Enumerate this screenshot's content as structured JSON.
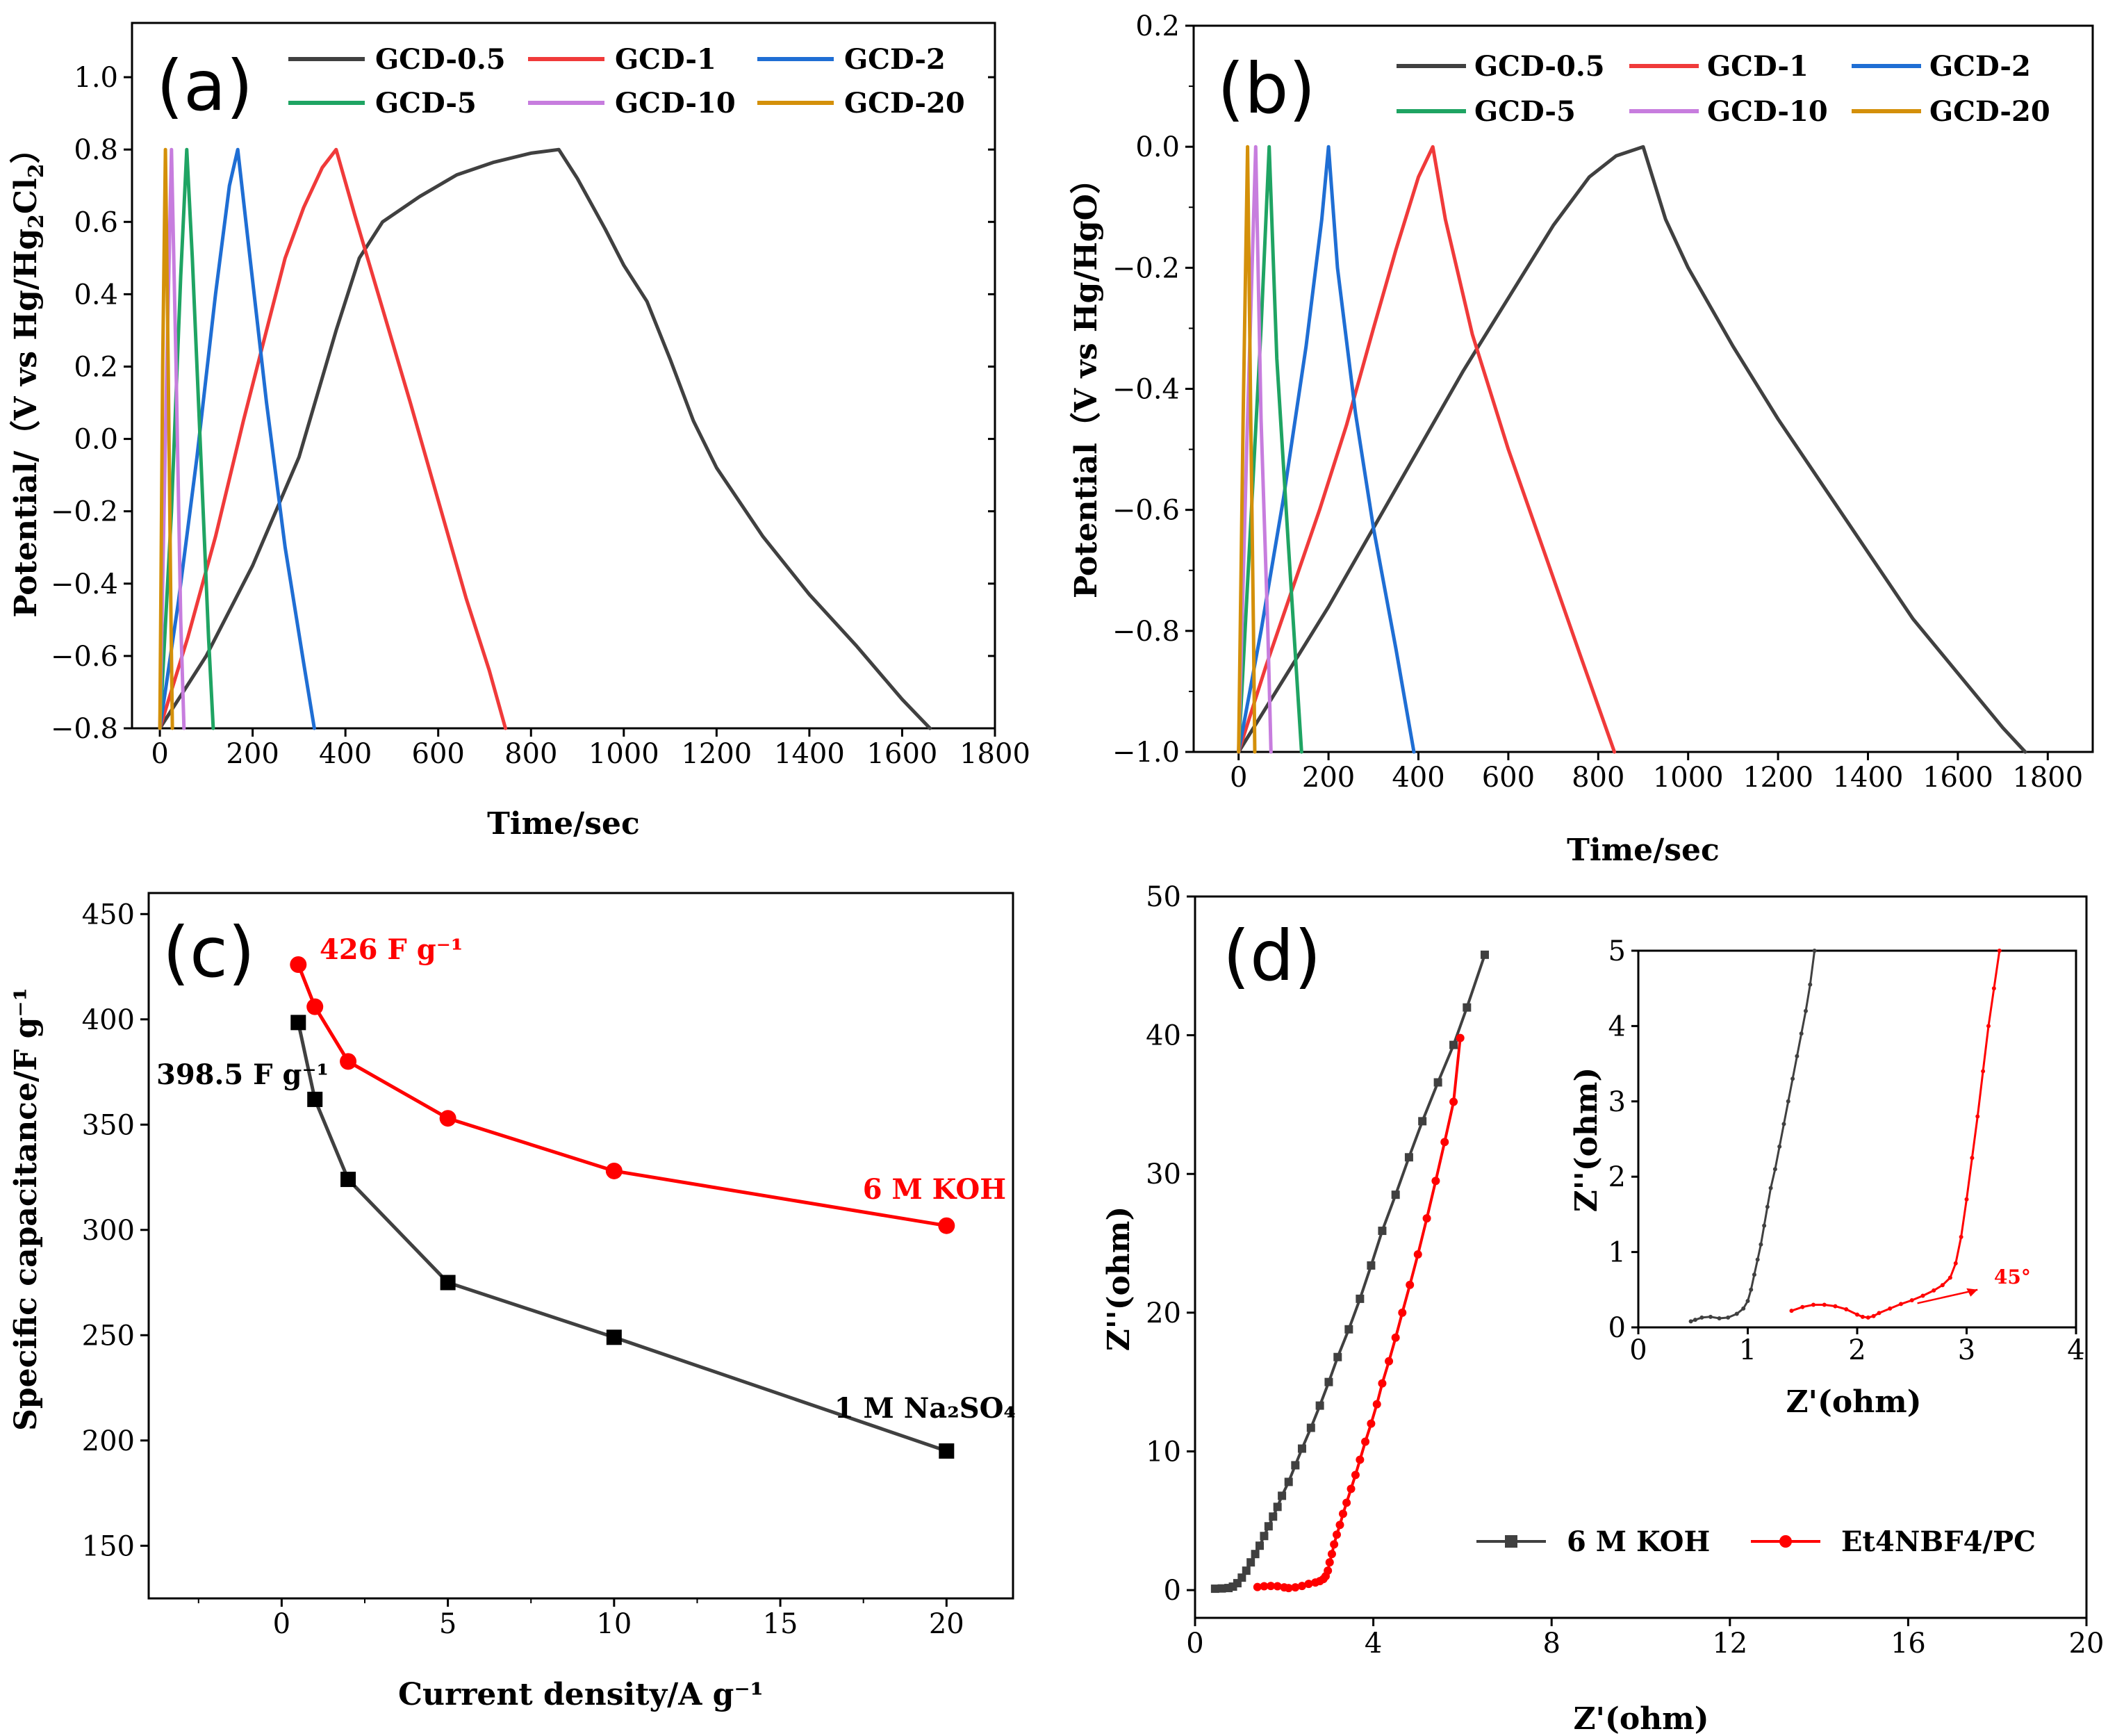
{
  "chart_data": [
    {
      "panel": "(a)",
      "type": "line",
      "xlabel": "Time/sec",
      "ylabel": "Potential/（V vs Hg/Hg2Cl2）",
      "ylabel_parts": {
        "pre": "Potential/（V vs Hg/Hg",
        "sub1": "2",
        "mid": "Cl",
        "sub2": "2",
        "post": "）"
      },
      "xlim": [
        -60,
        1800
      ],
      "ylim": [
        -0.8,
        1.15
      ],
      "xticks": [
        0,
        200,
        400,
        600,
        800,
        1000,
        1200,
        1400,
        1600,
        1800
      ],
      "yticks": [
        -0.8,
        -0.6,
        -0.4,
        -0.2,
        0.0,
        0.2,
        0.4,
        0.6,
        0.8,
        1.0
      ],
      "ytick_labels": [
        "−0.8",
        "−0.6",
        "−0.4",
        "−0.2",
        "0.0",
        "0.2",
        "0.4",
        "0.6",
        "0.8",
        "1.0"
      ],
      "series": [
        {
          "name": "GCD-0.5",
          "color": "#404040",
          "points": [
            [
              0,
              -0.8
            ],
            [
              100,
              -0.6
            ],
            [
              200,
              -0.35
            ],
            [
              300,
              -0.05
            ],
            [
              380,
              0.3
            ],
            [
              430,
              0.5
            ],
            [
              480,
              0.6
            ],
            [
              560,
              0.67
            ],
            [
              640,
              0.73
            ],
            [
              720,
              0.765
            ],
            [
              800,
              0.79
            ],
            [
              860,
              0.8
            ],
            [
              900,
              0.72
            ],
            [
              960,
              0.58
            ],
            [
              1000,
              0.48
            ],
            [
              1050,
              0.38
            ],
            [
              1100,
              0.22
            ],
            [
              1150,
              0.05
            ],
            [
              1200,
              -0.08
            ],
            [
              1300,
              -0.27
            ],
            [
              1400,
              -0.43
            ],
            [
              1500,
              -0.57
            ],
            [
              1600,
              -0.72
            ],
            [
              1660,
              -0.8
            ]
          ]
        },
        {
          "name": "GCD-1",
          "color": "#f03a3a",
          "points": [
            [
              0,
              -0.8
            ],
            [
              60,
              -0.55
            ],
            [
              120,
              -0.27
            ],
            [
              180,
              0.05
            ],
            [
              230,
              0.3
            ],
            [
              270,
              0.5
            ],
            [
              310,
              0.64
            ],
            [
              350,
              0.75
            ],
            [
              380,
              0.8
            ],
            [
              420,
              0.62
            ],
            [
              480,
              0.36
            ],
            [
              540,
              0.1
            ],
            [
              600,
              -0.17
            ],
            [
              660,
              -0.44
            ],
            [
              710,
              -0.64
            ],
            [
              745,
              -0.8
            ]
          ]
        },
        {
          "name": "GCD-2",
          "color": "#1f6ed4",
          "points": [
            [
              0,
              -0.8
            ],
            [
              40,
              -0.45
            ],
            [
              80,
              -0.05
            ],
            [
              120,
              0.4
            ],
            [
              150,
              0.7
            ],
            [
              168,
              0.8
            ],
            [
              190,
              0.55
            ],
            [
              230,
              0.1
            ],
            [
              270,
              -0.3
            ],
            [
              310,
              -0.62
            ],
            [
              333,
              -0.8
            ]
          ]
        },
        {
          "name": "GCD-5",
          "color": "#1fa463",
          "points": [
            [
              0,
              -0.8
            ],
            [
              25,
              -0.2
            ],
            [
              45,
              0.45
            ],
            [
              58,
              0.8
            ],
            [
              70,
              0.5
            ],
            [
              90,
              -0.1
            ],
            [
              105,
              -0.55
            ],
            [
              115,
              -0.8
            ]
          ]
        },
        {
          "name": "GCD-10",
          "color": "#c77dde",
          "points": [
            [
              0,
              -0.8
            ],
            [
              15,
              0.2
            ],
            [
              25,
              0.8
            ],
            [
              35,
              0.2
            ],
            [
              45,
              -0.5
            ],
            [
              52,
              -0.8
            ]
          ]
        },
        {
          "name": "GCD-20",
          "color": "#d4900a",
          "points": [
            [
              0,
              -0.8
            ],
            [
              6,
              0.2
            ],
            [
              12,
              0.8
            ],
            [
              18,
              0.2
            ],
            [
              24,
              -0.5
            ],
            [
              27,
              -0.8
            ]
          ]
        }
      ]
    },
    {
      "panel": "(b)",
      "type": "line",
      "xlabel": "Time/sec",
      "ylabel": "Potential（V vs Hg/HgO）",
      "xlim": [
        -100,
        1900
      ],
      "ylim": [
        -1.0,
        0.2
      ],
      "xticks": [
        0,
        200,
        400,
        600,
        800,
        1000,
        1200,
        1400,
        1600,
        1800
      ],
      "yticks": [
        -1.0,
        -0.8,
        -0.6,
        -0.4,
        -0.2,
        0.0,
        0.2
      ],
      "ytick_labels": [
        "−1.0",
        "−0.8",
        "−0.6",
        "−0.4",
        "−0.2",
        "0.0",
        "0.2"
      ],
      "series": [
        {
          "name": "GCD-0.5",
          "color": "#404040",
          "points": [
            [
              0,
              -1.0
            ],
            [
              100,
              -0.88
            ],
            [
              200,
              -0.76
            ],
            [
              300,
              -0.63
            ],
            [
              400,
              -0.5
            ],
            [
              500,
              -0.37
            ],
            [
              600,
              -0.25
            ],
            [
              700,
              -0.13
            ],
            [
              780,
              -0.05
            ],
            [
              840,
              -0.015
            ],
            [
              900,
              0.0
            ],
            [
              950,
              -0.12
            ],
            [
              1000,
              -0.2
            ],
            [
              1100,
              -0.33
            ],
            [
              1200,
              -0.45
            ],
            [
              1300,
              -0.56
            ],
            [
              1400,
              -0.67
            ],
            [
              1500,
              -0.78
            ],
            [
              1600,
              -0.87
            ],
            [
              1700,
              -0.96
            ],
            [
              1750,
              -1.0
            ]
          ]
        },
        {
          "name": "GCD-1",
          "color": "#f03a3a",
          "points": [
            [
              0,
              -1.0
            ],
            [
              60,
              -0.86
            ],
            [
              120,
              -0.73
            ],
            [
              180,
              -0.6
            ],
            [
              240,
              -0.46
            ],
            [
              300,
              -0.3
            ],
            [
              350,
              -0.17
            ],
            [
              400,
              -0.05
            ],
            [
              432,
              0.0
            ],
            [
              460,
              -0.12
            ],
            [
              520,
              -0.31
            ],
            [
              600,
              -0.5
            ],
            [
              680,
              -0.67
            ],
            [
              760,
              -0.84
            ],
            [
              836,
              -1.0
            ]
          ]
        },
        {
          "name": "GCD-2",
          "color": "#1f6ed4",
          "points": [
            [
              0,
              -1.0
            ],
            [
              50,
              -0.8
            ],
            [
              100,
              -0.58
            ],
            [
              150,
              -0.33
            ],
            [
              185,
              -0.12
            ],
            [
              200,
              0.0
            ],
            [
              220,
              -0.2
            ],
            [
              260,
              -0.44
            ],
            [
              300,
              -0.63
            ],
            [
              350,
              -0.83
            ],
            [
              390,
              -1.0
            ]
          ]
        },
        {
          "name": "GCD-5",
          "color": "#1fa463",
          "points": [
            [
              0,
              -1.0
            ],
            [
              25,
              -0.65
            ],
            [
              50,
              -0.3
            ],
            [
              68,
              0.0
            ],
            [
              85,
              -0.35
            ],
            [
              110,
              -0.65
            ],
            [
              140,
              -1.0
            ]
          ]
        },
        {
          "name": "GCD-10",
          "color": "#c77dde",
          "points": [
            [
              0,
              -1.0
            ],
            [
              18,
              -0.5
            ],
            [
              38,
              0.0
            ],
            [
              50,
              -0.45
            ],
            [
              65,
              -0.8
            ],
            [
              72,
              -1.0
            ]
          ]
        },
        {
          "name": "GCD-20",
          "color": "#d4900a",
          "points": [
            [
              0,
              -1.0
            ],
            [
              10,
              -0.45
            ],
            [
              20,
              0.0
            ],
            [
              27,
              -0.45
            ],
            [
              33,
              -0.8
            ],
            [
              36,
              -1.0
            ]
          ]
        }
      ]
    },
    {
      "panel": "(c)",
      "type": "line",
      "xlabel": "Current density/A g⁻¹",
      "ylabel": "Specific capacitance/F g⁻¹",
      "xlim": [
        -4,
        22
      ],
      "ylim": [
        125,
        460
      ],
      "xticks": [
        0,
        5,
        10,
        15,
        20
      ],
      "yticks": [
        150,
        200,
        250,
        300,
        350,
        400,
        450
      ],
      "minor_xticks": [
        -2.5,
        2.5,
        7.5,
        12.5,
        17.5
      ],
      "series": [
        {
          "name": "6 M KOH",
          "color": "#ff0000",
          "marker": "circle",
          "x": [
            0.5,
            1,
            2,
            5,
            10,
            20
          ],
          "values": [
            426,
            406,
            380,
            353,
            328,
            302
          ]
        },
        {
          "name": "1 M Na2SO4",
          "color": "#000000",
          "marker": "square",
          "line_color": "#404040",
          "x": [
            0.5,
            1,
            2,
            5,
            10,
            20
          ],
          "values": [
            398.5,
            362,
            324,
            275,
            249,
            195
          ]
        }
      ],
      "annotations": {
        "koh_peak": "426 F g⁻¹",
        "na_peak": "398.5 F g⁻¹",
        "koh_label": "6 M KOH",
        "na_label": "1 M Na₂SO₄"
      }
    },
    {
      "panel": "(d)",
      "type": "scatter",
      "xlabel": "Z'(ohm)",
      "ylabel": "Z''(ohm)",
      "xlim": [
        0,
        20
      ],
      "ylim": [
        -2,
        50
      ],
      "xticks": [
        0,
        4,
        8,
        12,
        16,
        20
      ],
      "yticks": [
        0,
        10,
        20,
        30,
        40,
        50
      ],
      "series": [
        {
          "name": "6 M KOH",
          "color": "#404040",
          "marker": "square",
          "x": [
            0.45,
            0.6,
            0.75,
            0.85,
            0.95,
            1.05,
            1.15,
            1.25,
            1.35,
            1.45,
            1.55,
            1.65,
            1.75,
            1.85,
            1.95,
            2.1,
            2.25,
            2.4,
            2.6,
            2.8,
            3.0,
            3.2,
            3.45,
            3.7,
            3.95,
            4.2,
            4.5,
            4.8,
            5.1,
            5.45,
            5.8,
            6.1,
            6.5
          ],
          "values": [
            0.1,
            0.12,
            0.15,
            0.25,
            0.5,
            0.9,
            1.4,
            2.0,
            2.6,
            3.2,
            3.9,
            4.6,
            5.3,
            6.0,
            6.8,
            7.8,
            9.0,
            10.2,
            11.7,
            13.3,
            15.0,
            16.8,
            18.8,
            21.0,
            23.4,
            25.9,
            28.5,
            31.2,
            33.8,
            36.6,
            39.3,
            42.0,
            45.8
          ]
        },
        {
          "name": "Et4NBF4/PC",
          "color": "#ff0000",
          "marker": "circle",
          "x": [
            1.4,
            1.55,
            1.7,
            1.85,
            2.0,
            2.1,
            2.25,
            2.4,
            2.55,
            2.7,
            2.8,
            2.88,
            2.93,
            2.98,
            3.02,
            3.07,
            3.12,
            3.18,
            3.25,
            3.32,
            3.4,
            3.5,
            3.6,
            3.7,
            3.82,
            3.95,
            4.08,
            4.2,
            4.35,
            4.5,
            4.65,
            4.82,
            5.0,
            5.2,
            5.4,
            5.6,
            5.8,
            5.95
          ],
          "values": [
            0.22,
            0.28,
            0.3,
            0.28,
            0.2,
            0.15,
            0.2,
            0.3,
            0.45,
            0.55,
            0.65,
            0.8,
            1.0,
            1.4,
            2.0,
            2.6,
            3.3,
            4.0,
            4.7,
            5.5,
            6.3,
            7.3,
            8.3,
            9.4,
            10.7,
            12.0,
            13.4,
            14.9,
            16.5,
            18.2,
            20.0,
            22.0,
            24.2,
            26.8,
            29.5,
            32.3,
            35.2,
            39.8
          ]
        }
      ],
      "legend": {
        "items": [
          "6 M KOH",
          "Et4NBF4/PC"
        ]
      },
      "inset": {
        "xlim": [
          0,
          4
        ],
        "ylim": [
          0,
          5
        ],
        "xticks": [
          0,
          1,
          2,
          3,
          4
        ],
        "yticks": [
          0,
          1,
          2,
          3,
          4,
          5
        ],
        "xlabel": "Z'(ohm)",
        "ylabel": "Z''(ohm)",
        "annotation": "45°",
        "series": [
          {
            "name": "6 M KOH",
            "color": "#404040",
            "x": [
              0.48,
              0.52,
              0.58,
              0.66,
              0.74,
              0.82,
              0.9,
              0.96,
              1.0,
              1.03,
              1.06,
              1.09,
              1.12,
              1.15,
              1.18,
              1.21,
              1.25,
              1.29,
              1.33,
              1.37,
              1.41,
              1.45,
              1.49,
              1.53,
              1.57,
              1.61
            ],
            "values": [
              0.08,
              0.1,
              0.13,
              0.14,
              0.12,
              0.13,
              0.18,
              0.25,
              0.35,
              0.5,
              0.7,
              0.9,
              1.1,
              1.35,
              1.6,
              1.85,
              2.1,
              2.4,
              2.7,
              3.0,
              3.3,
              3.6,
              3.9,
              4.2,
              4.55,
              5.0
            ]
          },
          {
            "name": "Et4NBF4/PC",
            "color": "#ff0000",
            "x": [
              1.4,
              1.5,
              1.6,
              1.7,
              1.8,
              1.9,
              2.0,
              2.05,
              2.1,
              2.15,
              2.2,
              2.3,
              2.4,
              2.5,
              2.6,
              2.7,
              2.78,
              2.85,
              2.9,
              2.95,
              3.0,
              3.05,
              3.1,
              3.15,
              3.2,
              3.25,
              3.3
            ],
            "values": [
              0.22,
              0.27,
              0.3,
              0.3,
              0.28,
              0.24,
              0.17,
              0.14,
              0.13,
              0.15,
              0.19,
              0.25,
              0.31,
              0.36,
              0.42,
              0.49,
              0.56,
              0.66,
              0.85,
              1.2,
              1.7,
              2.25,
              2.8,
              3.4,
              4.0,
              4.5,
              5.0
            ]
          }
        ]
      }
    }
  ],
  "panel_letters": {
    "a": "(a)",
    "b": "(b)",
    "c": "(c)",
    "d": "(d)"
  }
}
